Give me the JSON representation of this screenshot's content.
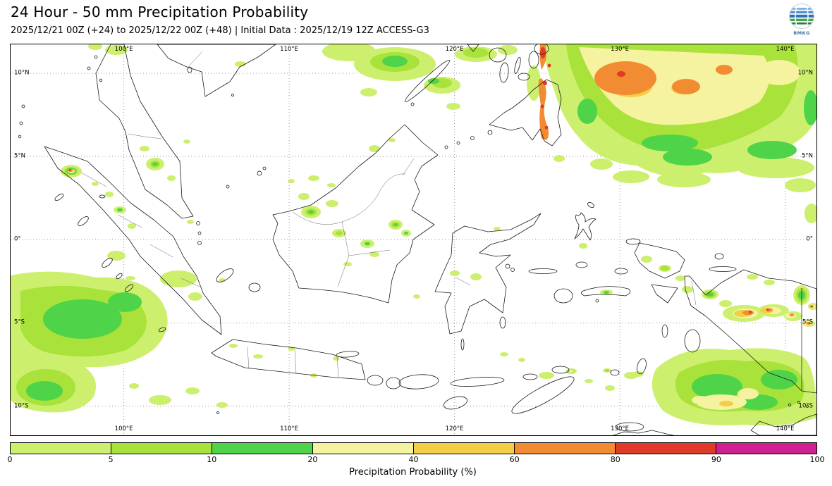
{
  "header": {
    "title": "24 Hour - 50 mm Precipitation Probability",
    "subtitle": "2025/12/21 00Z (+24) to 2025/12/22 00Z (+48) | Initial Data : 2025/12/19 12Z ACCESS-G3",
    "logo_text": "BMKG"
  },
  "map": {
    "lon_ticks": [
      "100°E",
      "110°E",
      "120°E",
      "130°E",
      "140°E"
    ],
    "lat_ticks": [
      "10°N",
      "5°N",
      "0°",
      "5°S",
      "10°S"
    ]
  },
  "colorbar": {
    "label": "Precipitation Probability (%)",
    "tick_labels": [
      "0",
      "5",
      "10",
      "20",
      "40",
      "60",
      "80",
      "90",
      "100"
    ],
    "segment_colors": [
      "#cdef6e",
      "#a9e23b",
      "#4fd348",
      "#f5f2a0",
      "#f2cf45",
      "#f28c33",
      "#e03a28",
      "#ce2090"
    ]
  },
  "chart_data": {
    "type": "heatmap",
    "title": "24 Hour - 50 mm Precipitation Probability",
    "valid_period": "2025/12/21 00Z (+24) to 2025/12/22 00Z (+48)",
    "initial_data": "2025/12/19 12Z ACCESS-G3",
    "model": "ACCESS-G3",
    "units": "%",
    "lon_range": [
      "93°E",
      "142°E"
    ],
    "lat_range": [
      "12°S",
      "12°N"
    ],
    "probability_bins": [
      0,
      5,
      10,
      20,
      40,
      60,
      80,
      90,
      100
    ],
    "bin_colors": [
      "#cdef6e",
      "#a9e23b",
      "#4fd348",
      "#f5f2a0",
      "#f2cf45",
      "#f28c33",
      "#e03a28",
      "#ce2090"
    ],
    "regions": [
      {
        "area": "Pacific Ocean east of Philippines (126-140°E, 6-12°N)",
        "probability": "20-90"
      },
      {
        "area": "South China Sea north of Borneo (108-120°E, 9-12°N)",
        "probability": "5-20"
      },
      {
        "area": "East Mindanao coastal strip (~126.5°E, 6-11°N)",
        "probability": "60-90"
      },
      {
        "area": "Indian Ocean west of Sumatra (93-100°E, 2-8°S)",
        "probability": "5-20"
      },
      {
        "area": "NW Sumatra coast near 97°E, 4°N",
        "probability": "40-90"
      },
      {
        "area": "Scattered Borneo, Malay Peninsula and Sumatra interior",
        "probability": "5-20"
      },
      {
        "area": "Southern Papua (136-141°E, 4-5°S)",
        "probability": "20-90"
      },
      {
        "area": "Timor / Arafura Sea (126-141°E, 8-12°S)",
        "probability": "5-60"
      },
      {
        "area": "Indian Ocean SW corner (93-97°E, 9-12°S)",
        "probability": "5-20"
      }
    ]
  }
}
